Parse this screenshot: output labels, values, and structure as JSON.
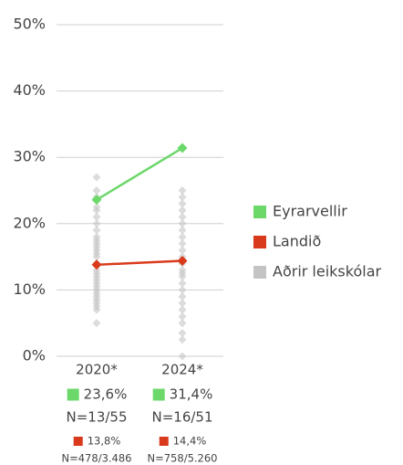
{
  "chart_data": {
    "type": "line",
    "categories": [
      "2020*",
      "2024*"
    ],
    "ylim": [
      0,
      50
    ],
    "yticks": [
      {
        "value": 0,
        "label": "0%"
      },
      {
        "value": 10,
        "label": "10%"
      },
      {
        "value": 20,
        "label": "20%"
      },
      {
        "value": 30,
        "label": "30%"
      },
      {
        "value": 40,
        "label": "40%"
      },
      {
        "value": 50,
        "label": "50%"
      }
    ],
    "grid": true,
    "legend": "right",
    "series": [
      {
        "name": "Eyrarvellir",
        "color": "#6dd86a",
        "values": [
          23.6,
          31.4
        ],
        "value_labels": [
          "23,6%",
          "31,4%"
        ],
        "n_labels": [
          "N=13/55",
          "N=16/51"
        ]
      },
      {
        "name": "Landið",
        "color": "#d93a1b",
        "values": [
          13.8,
          14.4
        ],
        "value_labels": [
          "13,8%",
          "14,4%"
        ],
        "n_labels": [
          "N=478/3.486",
          "N=758/5.260"
        ]
      },
      {
        "name": "Aðrir leikskólar",
        "color": "#c4c4c4",
        "values": [
          [
            5,
            7,
            7.5,
            8,
            8.5,
            9,
            9.5,
            10,
            10.5,
            11,
            11.5,
            12,
            12.5,
            13,
            14,
            15,
            15.5,
            16,
            16.5,
            17,
            17.5,
            18,
            19,
            20,
            21,
            22,
            22.5,
            24,
            25,
            27
          ],
          [
            0,
            2.5,
            3.5,
            5,
            6,
            7,
            8,
            9,
            10,
            11,
            12,
            12.5,
            13,
            14,
            15,
            16,
            17,
            18,
            19,
            20,
            21,
            22,
            23,
            24,
            25
          ]
        ]
      }
    ]
  }
}
